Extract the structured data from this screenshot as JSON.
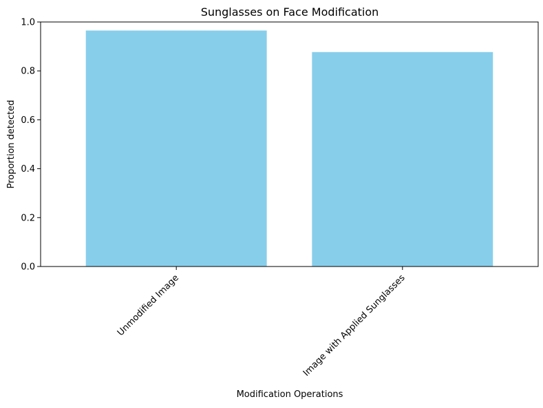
{
  "chart_data": {
    "type": "bar",
    "title": "Sunglasses on Face Modification",
    "xlabel": "Modification Operations",
    "ylabel": "Proportion detected",
    "categories": [
      "Unmodified Image",
      "Image with Applied Sunglasses"
    ],
    "values": [
      0.965,
      0.877
    ],
    "ylim": [
      0,
      1.0
    ],
    "yticks": [
      0.0,
      0.2,
      0.4,
      0.6,
      0.8,
      1.0
    ],
    "ytick_labels": [
      "0.0",
      "0.2",
      "0.4",
      "0.6",
      "0.8",
      "1.0"
    ],
    "bar_color": "#87CEEB",
    "grid": false,
    "legend": false
  }
}
